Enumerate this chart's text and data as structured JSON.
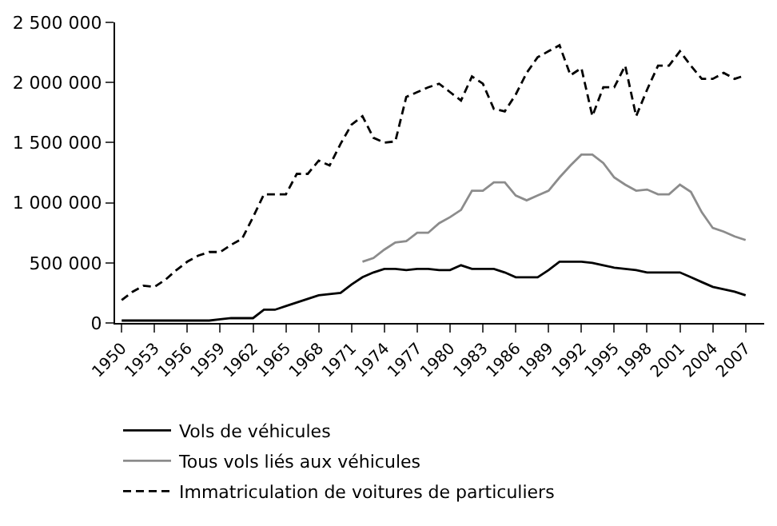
{
  "chart_data": {
    "type": "line",
    "x": [
      1950,
      1951,
      1952,
      1953,
      1954,
      1955,
      1956,
      1957,
      1958,
      1959,
      1960,
      1961,
      1962,
      1963,
      1964,
      1965,
      1966,
      1967,
      1968,
      1969,
      1970,
      1971,
      1972,
      1973,
      1974,
      1975,
      1976,
      1977,
      1978,
      1979,
      1980,
      1981,
      1982,
      1983,
      1984,
      1985,
      1986,
      1987,
      1988,
      1989,
      1990,
      1991,
      1992,
      1993,
      1994,
      1995,
      1996,
      1997,
      1998,
      1999,
      2000,
      2001,
      2002,
      2003,
      2004,
      2005,
      2006,
      2007
    ],
    "series": [
      {
        "name": "Vols de véhicules",
        "color": "#000000",
        "line_style": "solid",
        "values": [
          20000,
          20000,
          20000,
          20000,
          20000,
          20000,
          20000,
          20000,
          20000,
          30000,
          40000,
          40000,
          40000,
          110000,
          110000,
          140000,
          170000,
          200000,
          230000,
          240000,
          250000,
          320000,
          380000,
          420000,
          450000,
          450000,
          440000,
          450000,
          450000,
          440000,
          440000,
          480000,
          450000,
          450000,
          450000,
          420000,
          380000,
          380000,
          380000,
          440000,
          510000,
          510000,
          510000,
          500000,
          480000,
          460000,
          450000,
          440000,
          420000,
          420000,
          420000,
          420000,
          380000,
          340000,
          300000,
          280000,
          260000,
          230000
        ]
      },
      {
        "name": "Tous vols liés aux véhicules",
        "color": "#8c8c8c",
        "line_style": "solid",
        "values": [
          null,
          null,
          null,
          null,
          null,
          null,
          null,
          null,
          null,
          null,
          null,
          null,
          null,
          null,
          null,
          null,
          null,
          null,
          null,
          null,
          null,
          null,
          510000,
          540000,
          610000,
          670000,
          680000,
          750000,
          750000,
          830000,
          880000,
          940000,
          1100000,
          1100000,
          1170000,
          1170000,
          1060000,
          1020000,
          1060000,
          1100000,
          1210000,
          1310000,
          1400000,
          1400000,
          1330000,
          1210000,
          1150000,
          1100000,
          1110000,
          1070000,
          1070000,
          1150000,
          1090000,
          920000,
          790000,
          760000,
          720000,
          690000
        ]
      },
      {
        "name": "Immatriculation de voitures de particuliers",
        "color": "#000000",
        "line_style": "dashed",
        "values": [
          190000,
          260000,
          310000,
          300000,
          360000,
          440000,
          510000,
          560000,
          590000,
          590000,
          650000,
          700000,
          880000,
          1070000,
          1070000,
          1070000,
          1240000,
          1240000,
          1350000,
          1310000,
          1490000,
          1650000,
          1720000,
          1540000,
          1500000,
          1510000,
          1880000,
          1920000,
          1960000,
          1990000,
          1920000,
          1850000,
          2050000,
          1990000,
          1780000,
          1760000,
          1900000,
          2080000,
          2210000,
          2260000,
          2310000,
          2060000,
          2120000,
          1720000,
          1960000,
          1960000,
          2140000,
          1720000,
          1940000,
          2140000,
          2140000,
          2260000,
          2140000,
          2030000,
          2030000,
          2080000,
          2030000,
          2060000
        ]
      }
    ],
    "xlim": [
      1949.4,
      2008.7
    ],
    "xticks": [
      1950,
      1953,
      1956,
      1959,
      1962,
      1965,
      1968,
      1971,
      1974,
      1977,
      1980,
      1983,
      1986,
      1989,
      1992,
      1995,
      1998,
      2001,
      2004,
      2007
    ],
    "ylim": [
      0,
      2500000
    ],
    "yticks": [
      0,
      {
        "value": 500000,
        "label": "500 000"
      },
      {
        "value": 1000000,
        "label": "1 000 000"
      },
      {
        "value": 1500000,
        "label": "1 500 000"
      },
      {
        "value": 2000000,
        "label": "2 000 000"
      },
      {
        "value": 2500000,
        "label": "2 500 000"
      }
    ],
    "legend": "bottom",
    "marker": "none"
  }
}
